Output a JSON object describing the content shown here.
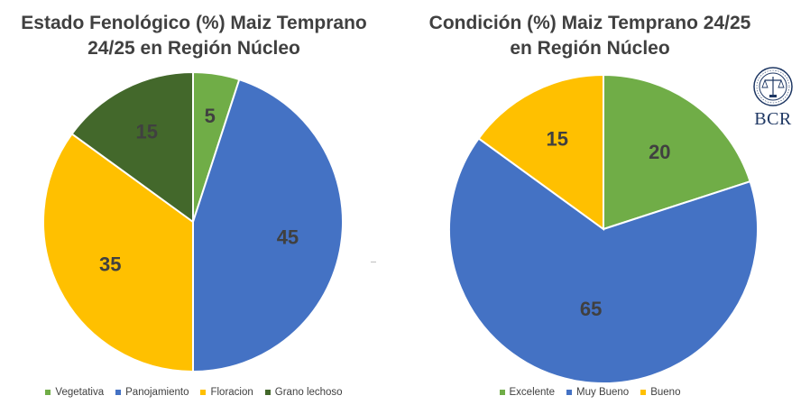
{
  "chart_data": [
    {
      "type": "pie",
      "title": "Estado Fenológico (%) Maiz Temprano\n24/25 en Región Núcleo",
      "categories": [
        "Vegetativa",
        "Panojamiento",
        "Floracion",
        "Grano lechoso"
      ],
      "values": [
        5,
        45,
        35,
        15
      ],
      "colors": [
        "#70ad47",
        "#4472c4",
        "#ffc000",
        "#43682b"
      ],
      "legend_position": "bottom"
    },
    {
      "type": "pie",
      "title": "Condición (%) Maiz Temprano 24/25\nen Región Núcleo",
      "categories": [
        "Excelente",
        "Muy Bueno",
        "Bueno"
      ],
      "values": [
        20,
        65,
        15
      ],
      "colors": [
        "#70ad47",
        "#4472c4",
        "#ffc000"
      ],
      "legend_position": "bottom"
    }
  ],
  "logo": {
    "text": "BCR",
    "seal_text": "BOLSA DE COMERCIO DE ROSARIO"
  }
}
